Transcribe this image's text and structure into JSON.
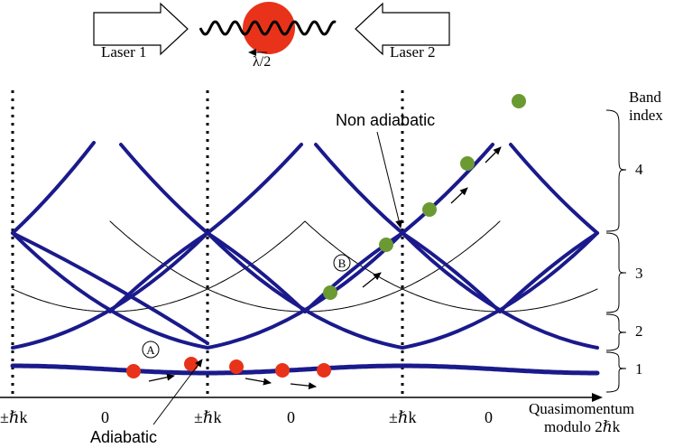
{
  "header": {
    "laser_1": "Laser 1",
    "laser_2": "Laser 2",
    "wavelength_label": "λ/2"
  },
  "annotations": {
    "non_adiabatic": "Non adiabatic",
    "adiabatic": "Adiabatic",
    "marker_a": "A",
    "marker_b": "B"
  },
  "band_index": {
    "title_line1": "Band",
    "title_line2": "index",
    "bands": [
      "4",
      "3",
      "2",
      "1"
    ]
  },
  "x_axis": {
    "tick_labels": [
      "±ℏk",
      "0",
      "±ℏk",
      "0",
      "±ℏk",
      "0"
    ],
    "title_line1": "Quasimomentum",
    "title_line2": "modulo 2ℏk"
  },
  "colors": {
    "band_line": "#1a1a8c",
    "atom": "#e8331a",
    "green_point": "#6b9a32",
    "axis": "#000000"
  }
}
